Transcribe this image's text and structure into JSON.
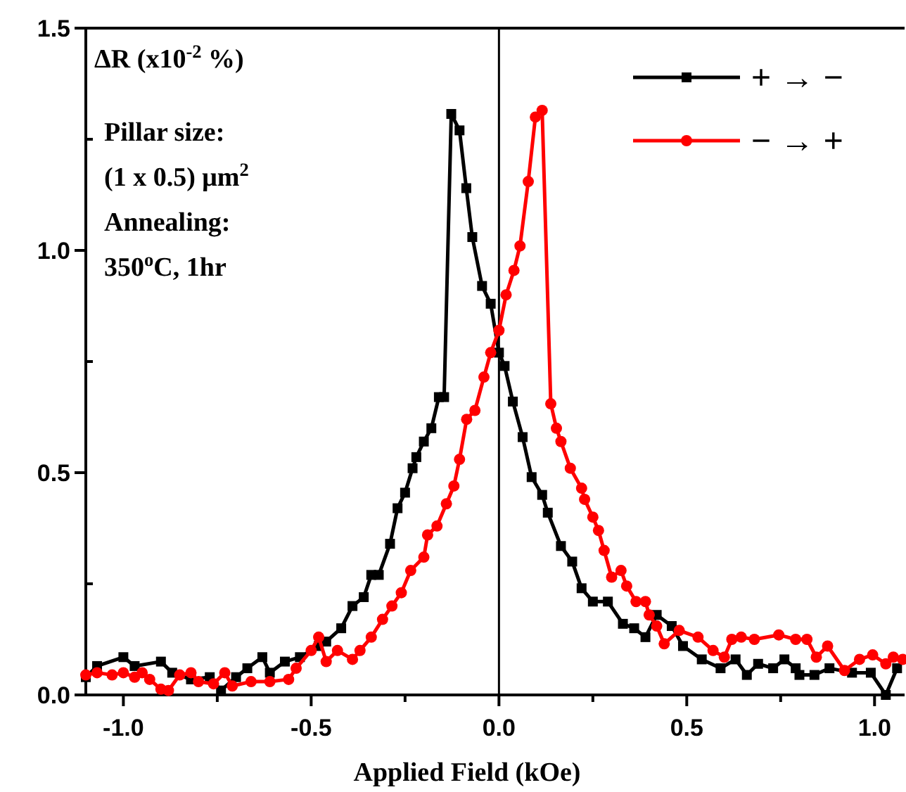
{
  "chart_data": {
    "type": "line",
    "ylabel": "ΔR (x10$^{-2}$ %)",
    "xlabel": "Applied Field (kOe)",
    "annotations": [
      "Pillar size:",
      "(1 x 0.5) μm$^{2}$",
      "Annealing:",
      "350$^{o}$C, 1hr"
    ],
    "xlim": [
      -1.1,
      1.08
    ],
    "ylim": [
      0,
      1.5
    ],
    "xticks": [
      {
        "value": -1,
        "label": "-1.0"
      },
      {
        "value": -0.75,
        "label": null
      },
      {
        "value": -0.5,
        "label": "-0.5"
      },
      {
        "value": -0.25,
        "label": null
      },
      {
        "value": 0,
        "label": "0.0"
      },
      {
        "value": 0.25,
        "label": null
      },
      {
        "value": 0.5,
        "label": "0.5"
      },
      {
        "value": 0.75,
        "label": null
      },
      {
        "value": 1,
        "label": "1.0"
      }
    ],
    "yticks": [
      {
        "value": 0,
        "label": "0.0"
      },
      {
        "value": 0.25,
        "label": null
      },
      {
        "value": 0.5,
        "label": "0.5"
      },
      {
        "value": 0.75,
        "label": null
      },
      {
        "value": 1,
        "label": "1.0"
      },
      {
        "value": 1.25,
        "label": null
      },
      {
        "value": 1.5,
        "label": "1.5"
      }
    ],
    "ref_lines": [
      {
        "axis": "x",
        "value": 0,
        "color": "#000000"
      }
    ],
    "legend": "top right",
    "grid": false,
    "line_style": "solid",
    "series": [
      {
        "name": "+ → −",
        "color": "#000000",
        "marker": "square",
        "x": [
          -1.1,
          -1.07,
          -1.0,
          -0.97,
          -0.9,
          -0.87,
          -0.82,
          -0.77,
          -0.74,
          -0.7,
          -0.67,
          -0.63,
          -0.61,
          -0.57,
          -0.53,
          -0.48,
          -0.46,
          -0.42,
          -0.39,
          -0.36,
          -0.34,
          -0.32,
          -0.29,
          -0.27,
          -0.25,
          -0.23,
          -0.22,
          -0.2,
          -0.18,
          -0.16,
          -0.146,
          -0.127,
          -0.105,
          -0.087,
          -0.071,
          -0.045,
          -0.022,
          0,
          0.015,
          0.037,
          0.063,
          0.087,
          0.115,
          0.13,
          0.165,
          0.195,
          0.22,
          0.25,
          0.29,
          0.33,
          0.36,
          0.39,
          0.42,
          0.46,
          0.49,
          0.54,
          0.59,
          0.63,
          0.66,
          0.69,
          0.73,
          0.76,
          0.79,
          0.8,
          0.84,
          0.88,
          0.94,
          0.99,
          1.03,
          1.06
        ],
        "values": [
          0.04,
          0.065,
          0.085,
          0.065,
          0.075,
          0.05,
          0.035,
          0.04,
          0.01,
          0.04,
          0.06,
          0.085,
          0.05,
          0.075,
          0.085,
          0.11,
          0.12,
          0.15,
          0.2,
          0.22,
          0.27,
          0.27,
          0.34,
          0.42,
          0.455,
          0.51,
          0.535,
          0.57,
          0.6,
          0.67,
          0.67,
          1.307,
          1.27,
          1.14,
          1.03,
          0.92,
          0.88,
          0.77,
          0.74,
          0.66,
          0.58,
          0.49,
          0.45,
          0.41,
          0.335,
          0.3,
          0.24,
          0.21,
          0.21,
          0.16,
          0.15,
          0.13,
          0.18,
          0.155,
          0.11,
          0.08,
          0.06,
          0.08,
          0.045,
          0.07,
          0.06,
          0.08,
          0.06,
          0.045,
          0.045,
          0.06,
          0.05,
          0.05,
          0.0,
          0.06
        ]
      },
      {
        "name": "− → +",
        "color": "#ff0000",
        "marker": "circle",
        "x": [
          -1.1,
          -1.07,
          -1.03,
          -1.0,
          -0.97,
          -0.95,
          -0.93,
          -0.9,
          -0.88,
          -0.85,
          -0.82,
          -0.8,
          -0.76,
          -0.73,
          -0.71,
          -0.66,
          -0.61,
          -0.56,
          -0.54,
          -0.5,
          -0.48,
          -0.46,
          -0.43,
          -0.39,
          -0.37,
          -0.34,
          -0.31,
          -0.285,
          -0.26,
          -0.235,
          -0.2,
          -0.19,
          -0.165,
          -0.14,
          -0.12,
          -0.105,
          -0.086,
          -0.064,
          -0.04,
          -0.022,
          0,
          0.019,
          0.04,
          0.056,
          0.078,
          0.097,
          0.115,
          0.138,
          0.153,
          0.165,
          0.19,
          0.22,
          0.228,
          0.25,
          0.265,
          0.28,
          0.3,
          0.325,
          0.34,
          0.365,
          0.39,
          0.4,
          0.42,
          0.44,
          0.48,
          0.53,
          0.57,
          0.6,
          0.62,
          0.645,
          0.68,
          0.745,
          0.79,
          0.82,
          0.845,
          0.875,
          0.92,
          0.96,
          0.995,
          1.03,
          1.05,
          1.075
        ],
        "values": [
          0.045,
          0.05,
          0.045,
          0.05,
          0.04,
          0.05,
          0.035,
          0.013,
          0.01,
          0.045,
          0.05,
          0.03,
          0.025,
          0.05,
          0.02,
          0.03,
          0.03,
          0.035,
          0.06,
          0.1,
          0.13,
          0.075,
          0.1,
          0.08,
          0.1,
          0.13,
          0.17,
          0.2,
          0.23,
          0.28,
          0.31,
          0.36,
          0.38,
          0.43,
          0.47,
          0.53,
          0.62,
          0.64,
          0.715,
          0.77,
          0.82,
          0.9,
          0.955,
          1.01,
          1.155,
          1.3,
          1.315,
          0.655,
          0.6,
          0.57,
          0.51,
          0.465,
          0.44,
          0.4,
          0.37,
          0.325,
          0.265,
          0.28,
          0.245,
          0.21,
          0.21,
          0.18,
          0.155,
          0.115,
          0.145,
          0.13,
          0.1,
          0.085,
          0.125,
          0.13,
          0.125,
          0.135,
          0.125,
          0.125,
          0.085,
          0.11,
          0.055,
          0.08,
          0.09,
          0.07,
          0.085,
          0.08
        ]
      }
    ]
  }
}
